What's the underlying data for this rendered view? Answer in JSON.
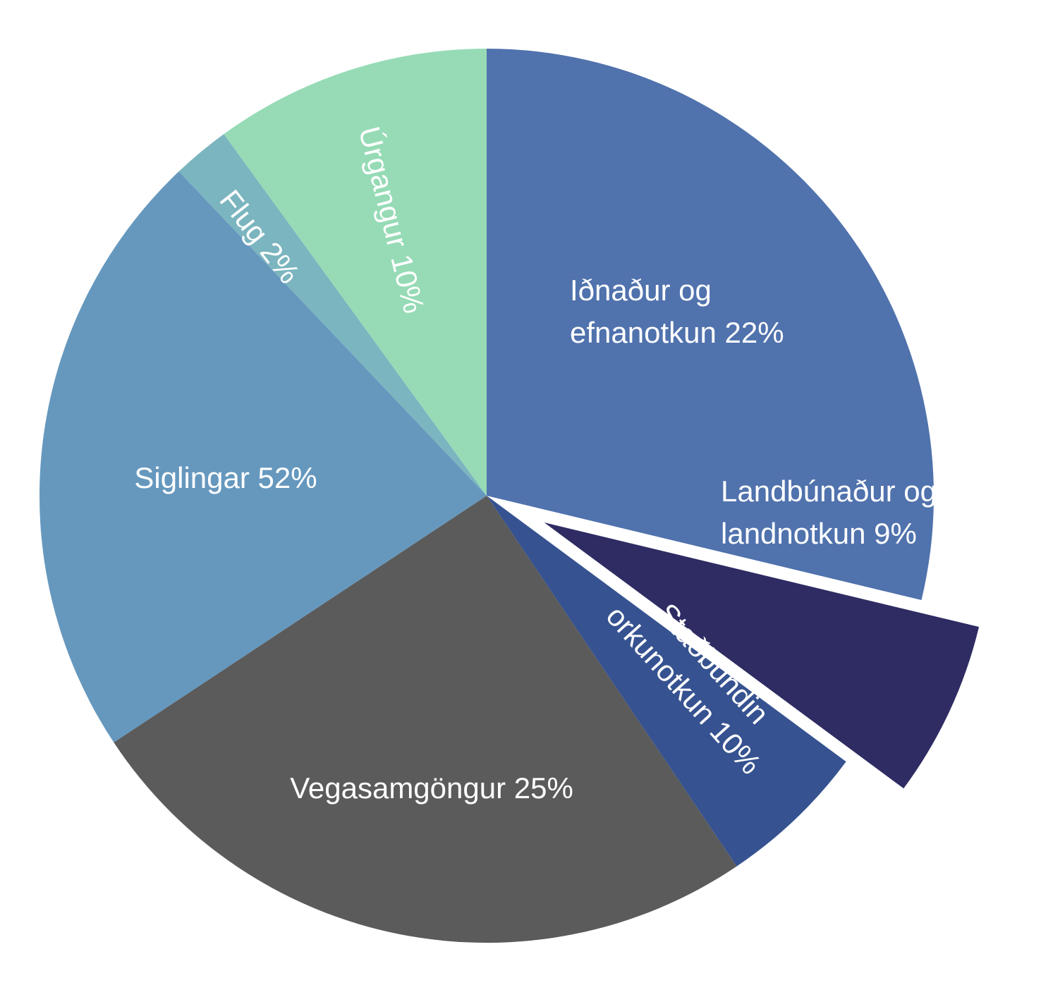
{
  "chart_data": {
    "type": "pie",
    "title": "",
    "slices": [
      {
        "name": "Iðnaður og efnanotkun",
        "value_label": "22%",
        "label_lines": [
          "Iðnaður og",
          "efnanotkun 22%"
        ],
        "color": "#5072AD"
      },
      {
        "name": "Landbúnaður og landnotkun",
        "value_label": "9%",
        "label_lines": [
          "Landbúnaður og",
          "landnotkun 9%"
        ],
        "color": "#2E2C63",
        "exploded": true
      },
      {
        "name": "Staðbundin orkunotkun",
        "value_label": "10%",
        "label_lines": [
          "Staðbundin",
          "orkunotkun 10%"
        ],
        "color": "#365290"
      },
      {
        "name": "Vegasamgöngur",
        "value_label": "25%",
        "label_lines": [
          "Vegasamgöngur 25%"
        ],
        "color": "#5B5B5B"
      },
      {
        "name": "Siglingar",
        "value_label": "52%",
        "label_lines": [
          "Siglingar 52%"
        ],
        "color": "#6698BE"
      },
      {
        "name": "Flug",
        "value_label": "2%",
        "label_lines": [
          "Flug 2%"
        ],
        "color": "#7BB5BF"
      },
      {
        "name": "Úrgangur",
        "value_label": "10%",
        "label_lines": [
          "Úrgangur 10%"
        ],
        "color": "#96DBB6"
      }
    ]
  }
}
